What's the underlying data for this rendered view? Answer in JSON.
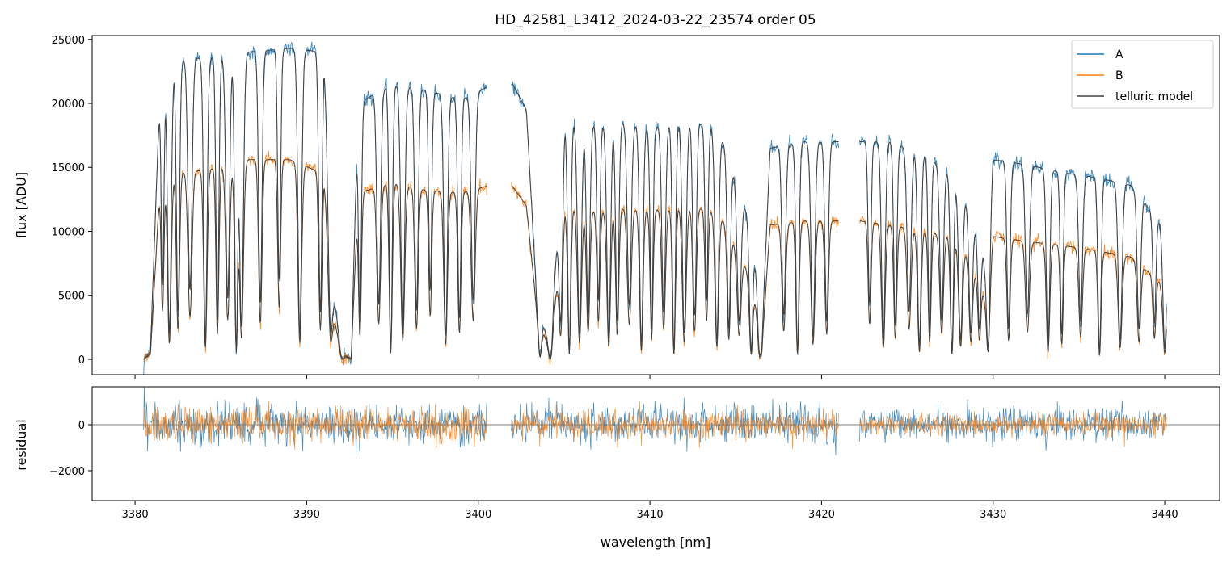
{
  "chart_data": {
    "type": "line",
    "title": "HD_42581_L3412_2024-03-22_23574  order 05",
    "xlabel": "wavelength [nm]",
    "xlim": [
      3377.5,
      3443.2
    ],
    "xticks": [
      3380,
      3390,
      3400,
      3410,
      3420,
      3430,
      3440
    ],
    "colors": {
      "A": "#1f77b4",
      "B": "#ff7f0e",
      "telluric model": "#404040"
    },
    "legend_position": "top-right",
    "panels": [
      {
        "name": "flux",
        "ylabel": "flux [ADU]",
        "ylim": [
          -1200,
          25300
        ],
        "yticks": [
          0,
          5000,
          10000,
          15000,
          20000,
          25000
        ],
        "series": [
          {
            "name": "A",
            "continuum": [
              [
                3380.5,
                0
              ],
              [
                3380.9,
                600
              ],
              [
                3381.5,
                23000
              ],
              [
                3383,
                23500
              ],
              [
                3385,
                23600
              ],
              [
                3386.5,
                24000
              ],
              [
                3389,
                24300
              ],
              [
                3391,
                24000
              ],
              [
                3391.5,
                6000
              ],
              [
                3392,
                600
              ],
              [
                3392.6,
                0
              ],
              [
                3393,
                20000
              ],
              [
                3395,
                21500
              ],
              [
                3397,
                21000
              ],
              [
                3399,
                20300
              ],
              [
                3400.4,
                21200
              ],
              [
                3402.0,
                21500
              ],
              [
                3402.8,
                19500
              ],
              [
                3403.4,
                5000
              ],
              [
                3404.2,
                500
              ],
              [
                3405,
                18800
              ],
              [
                3407,
                18200
              ],
              [
                3408.5,
                18500
              ],
              [
                3410,
                18000
              ],
              [
                3412,
                18800
              ],
              [
                3414,
                18000
              ],
              [
                3416,
                10000
              ],
              [
                3416.5,
                600
              ],
              [
                3417,
                16500
              ],
              [
                3419,
                17000
              ],
              [
                3420.9,
                17000
              ],
              [
                3422.3,
                17000
              ],
              [
                3424,
                17000
              ],
              [
                3426,
                16000
              ],
              [
                3428,
                14000
              ],
              [
                3429.5,
                8000
              ],
              [
                3430,
                15600
              ],
              [
                3432,
                15200
              ],
              [
                3434,
                14600
              ],
              [
                3436,
                14200
              ],
              [
                3438,
                13600
              ],
              [
                3440.1,
                10000
              ]
            ],
            "gaps": [
              [
                3400.5,
                3401.9
              ],
              [
                3421.0,
                3422.2
              ]
            ]
          },
          {
            "name": "B",
            "continuum": [
              [
                3380.5,
                0
              ],
              [
                3380.9,
                400
              ],
              [
                3381.5,
                14800
              ],
              [
                3383,
                14600
              ],
              [
                3385,
                15000
              ],
              [
                3386.5,
                15600
              ],
              [
                3389,
                15600
              ],
              [
                3391,
                14500
              ],
              [
                3391.5,
                4000
              ],
              [
                3392,
                400
              ],
              [
                3392.6,
                0
              ],
              [
                3393,
                13000
              ],
              [
                3395,
                13800
              ],
              [
                3397,
                13200
              ],
              [
                3399,
                13000
              ],
              [
                3400.4,
                13500
              ],
              [
                3402.0,
                13500
              ],
              [
                3402.8,
                12000
              ],
              [
                3403.4,
                4000
              ],
              [
                3404.2,
                300
              ],
              [
                3405,
                12000
              ],
              [
                3407,
                11500
              ],
              [
                3408.5,
                11800
              ],
              [
                3410,
                11600
              ],
              [
                3412,
                12000
              ],
              [
                3414,
                11500
              ],
              [
                3416,
                6000
              ],
              [
                3416.5,
                400
              ],
              [
                3417,
                10500
              ],
              [
                3419,
                10800
              ],
              [
                3420.9,
                10800
              ],
              [
                3422.3,
                10800
              ],
              [
                3424,
                10500
              ],
              [
                3426,
                10000
              ],
              [
                3428,
                9500
              ],
              [
                3429.5,
                5000
              ],
              [
                3430,
                9600
              ],
              [
                3432,
                9200
              ],
              [
                3434,
                8900
              ],
              [
                3436,
                8500
              ],
              [
                3438,
                8000
              ],
              [
                3440.1,
                5600
              ]
            ],
            "gaps": [
              [
                3400.5,
                3401.9
              ],
              [
                3421.0,
                3422.2
              ]
            ]
          },
          {
            "name": "telluric model",
            "lines_nm": [
              3381.6,
              3382.0,
              3382.5,
              3383.2,
              3384.1,
              3384.8,
              3385.4,
              3385.9,
              3386.2,
              3387.3,
              3388.4,
              3389.6,
              3390.8,
              3391.4,
              3392.1,
              3393.1,
              3394.2,
              3394.9,
              3395.6,
              3396.4,
              3397.2,
              3398.1,
              3398.9,
              3399.7,
              3403.6,
              3404.2,
              3404.8,
              3405.3,
              3405.9,
              3406.4,
              3407.0,
              3407.6,
              3408.1,
              3408.8,
              3409.5,
              3410.1,
              3410.8,
              3411.4,
              3412.0,
              3412.6,
              3413.3,
              3413.9,
              3414.6,
              3415.2,
              3415.9,
              3416.4,
              3417.8,
              3418.6,
              3419.5,
              3420.3,
              3422.8,
              3423.6,
              3424.3,
              3425.1,
              3425.7,
              3426.3,
              3427.0,
              3427.6,
              3428.1,
              3428.7,
              3429.2,
              3429.7,
              3430.9,
              3432.0,
              3433.2,
              3434.0,
              3435.1,
              3436.2,
              3437.4,
              3438.5,
              3439.4,
              3440.0
            ]
          }
        ]
      },
      {
        "name": "residual",
        "ylabel": "residual",
        "ylim": [
          -3300,
          1650
        ],
        "yticks": [
          -2000,
          0
        ],
        "zero_line": true,
        "series": [
          {
            "name": "A",
            "noise_std": [
              [
                3380.5,
                500
              ],
              [
                3392,
                400
              ],
              [
                3400.5,
                450
              ],
              [
                3402,
                400
              ],
              [
                3421,
                450
              ],
              [
                3422.3,
                350
              ],
              [
                3440.1,
                400
              ]
            ]
          },
          {
            "name": "B",
            "noise_std": [
              [
                3380.5,
                400
              ],
              [
                3392,
                350
              ],
              [
                3400.5,
                350
              ],
              [
                3402,
                300
              ],
              [
                3421,
                300
              ],
              [
                3422.3,
                250
              ],
              [
                3440.1,
                250
              ]
            ]
          }
        ]
      }
    ],
    "legend": [
      "A",
      "B",
      "telluric model"
    ]
  }
}
